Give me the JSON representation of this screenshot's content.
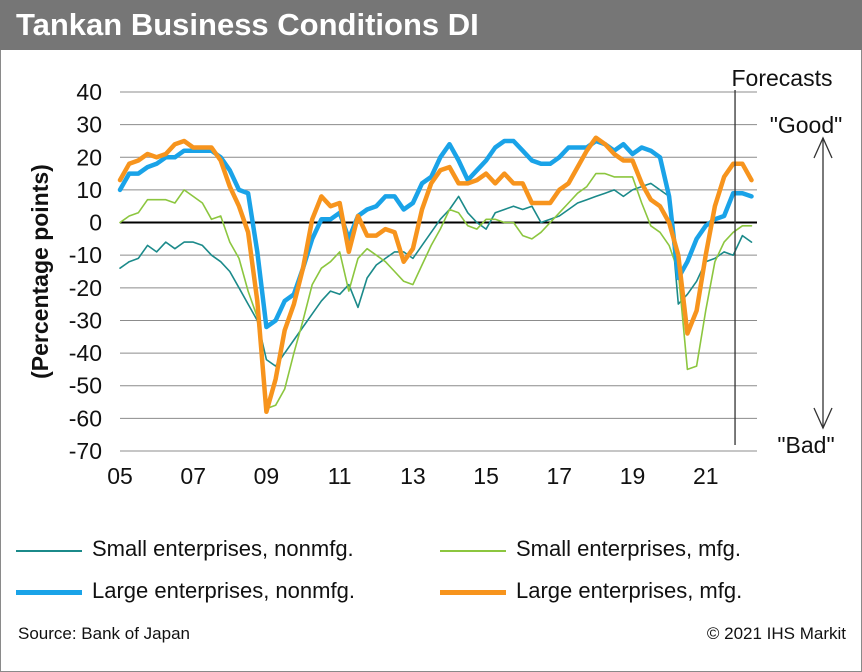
{
  "header": {
    "title": "Tankan Business Conditions DI"
  },
  "footer": {
    "source": "Source: Bank of Japan",
    "copyright": "© 2021 IHS Markit"
  },
  "chart_data": {
    "type": "line",
    "title": "Tankan Business Conditions DI",
    "xlabel": "",
    "ylabel": "(Percentage points)",
    "ylim": [
      -70,
      40
    ],
    "xlim": [
      2005,
      2022.4
    ],
    "yticks": [
      40,
      30,
      20,
      10,
      0,
      -10,
      -20,
      -30,
      -40,
      -50,
      -60,
      -70
    ],
    "xticks": [
      {
        "value": 2005,
        "label": "05"
      },
      {
        "value": 2007,
        "label": "07"
      },
      {
        "value": 2009,
        "label": "09"
      },
      {
        "value": 2011,
        "label": "11"
      },
      {
        "value": 2013,
        "label": "13"
      },
      {
        "value": 2015,
        "label": "15"
      },
      {
        "value": 2017,
        "label": "17"
      },
      {
        "value": 2019,
        "label": "19"
      },
      {
        "value": 2021,
        "label": "21"
      }
    ],
    "grid": true,
    "legend_position": "bottom",
    "annotations": {
      "forecast_label": "Forecasts",
      "forecast_x": 2021.8,
      "good_label": "\"Good\"",
      "bad_label": "\"Bad\""
    },
    "x": [
      2005.0,
      2005.25,
      2005.5,
      2005.75,
      2006.0,
      2006.25,
      2006.5,
      2006.75,
      2007.0,
      2007.25,
      2007.5,
      2007.75,
      2008.0,
      2008.25,
      2008.5,
      2008.75,
      2009.0,
      2009.25,
      2009.5,
      2009.75,
      2010.0,
      2010.25,
      2010.5,
      2010.75,
      2011.0,
      2011.25,
      2011.5,
      2011.75,
      2012.0,
      2012.25,
      2012.5,
      2012.75,
      2013.0,
      2013.25,
      2013.5,
      2013.75,
      2014.0,
      2014.25,
      2014.5,
      2014.75,
      2015.0,
      2015.25,
      2015.5,
      2015.75,
      2016.0,
      2016.25,
      2016.5,
      2016.75,
      2017.0,
      2017.25,
      2017.5,
      2017.75,
      2018.0,
      2018.25,
      2018.5,
      2018.75,
      2019.0,
      2019.25,
      2019.5,
      2019.75,
      2020.0,
      2020.25,
      2020.5,
      2020.75,
      2021.0,
      2021.25,
      2021.5,
      2021.75,
      2022.0,
      2022.25
    ],
    "series": [
      {
        "name": "Small enterprises, nonmfg.",
        "color": "#1b8a8a",
        "width": 1.6,
        "values": [
          -14,
          -12,
          -11,
          -7,
          -9,
          -6,
          -8,
          -6,
          -6,
          -7,
          -10,
          -12,
          -15,
          -20,
          -25,
          -30,
          -42,
          -44,
          -40,
          -36,
          -32,
          -28,
          -24,
          -21,
          -22,
          -19,
          -26,
          -17,
          -13,
          -11,
          -9,
          -9,
          -11,
          -7,
          -3,
          1,
          4,
          8,
          3,
          0,
          -2,
          3,
          4,
          5,
          4,
          5,
          0,
          1,
          2,
          4,
          6,
          7,
          8,
          9,
          10,
          8,
          10,
          11,
          12,
          10,
          8,
          -25,
          -22,
          -18,
          -12,
          -11,
          -9,
          -10,
          -4,
          -6
        ]
      },
      {
        "name": "Small enterprises, mfg.",
        "color": "#8cc63f",
        "width": 1.6,
        "values": [
          0,
          2,
          3,
          7,
          7,
          7,
          6,
          10,
          8,
          6,
          1,
          2,
          -6,
          -11,
          -21,
          -29,
          -57,
          -56,
          -51,
          -40,
          -30,
          -19,
          -14,
          -12,
          -9,
          -21,
          -11,
          -8,
          -10,
          -12,
          -15,
          -18,
          -19,
          -13,
          -7,
          -2,
          4,
          3,
          -1,
          -2,
          1,
          1,
          0,
          0,
          -4,
          -5,
          -3,
          0,
          3,
          6,
          9,
          11,
          15,
          15,
          14,
          14,
          14,
          6,
          -1,
          -3,
          -7,
          -15,
          -45,
          -44,
          -27,
          -12,
          -6,
          -3,
          -1,
          -1
        ]
      },
      {
        "name": "Large enterprises, nonmfg.",
        "color": "#1aa3e8",
        "width": 4.5,
        "values": [
          10,
          15,
          15,
          17,
          18,
          20,
          20,
          22,
          22,
          22,
          22,
          20,
          16,
          10,
          9,
          -9,
          -32,
          -30,
          -24,
          -22,
          -14,
          -5,
          1,
          1,
          3,
          -5,
          2,
          4,
          5,
          8,
          8,
          4,
          6,
          12,
          14,
          20,
          24,
          19,
          13,
          16,
          19,
          23,
          25,
          25,
          22,
          19,
          18,
          18,
          20,
          23,
          23,
          23,
          25,
          24,
          22,
          24,
          21,
          23,
          22,
          20,
          8,
          -17,
          -12,
          -5,
          -1,
          1,
          2,
          9,
          9,
          8
        ]
      },
      {
        "name": "Large enterprises, mfg.",
        "color": "#f7941d",
        "width": 4.5,
        "values": [
          13,
          18,
          19,
          21,
          20,
          21,
          24,
          25,
          23,
          23,
          23,
          19,
          11,
          5,
          -3,
          -24,
          -58,
          -48,
          -33,
          -25,
          -14,
          1,
          8,
          5,
          6,
          -9,
          2,
          -4,
          -4,
          -2,
          -3,
          -12,
          -8,
          4,
          12,
          16,
          17,
          12,
          12,
          13,
          15,
          12,
          15,
          12,
          12,
          6,
          6,
          6,
          10,
          12,
          17,
          22,
          26,
          24,
          21,
          19,
          19,
          12,
          7,
          5,
          0,
          -10,
          -34,
          -27,
          -10,
          5,
          14,
          18,
          18,
          13
        ]
      }
    ]
  }
}
